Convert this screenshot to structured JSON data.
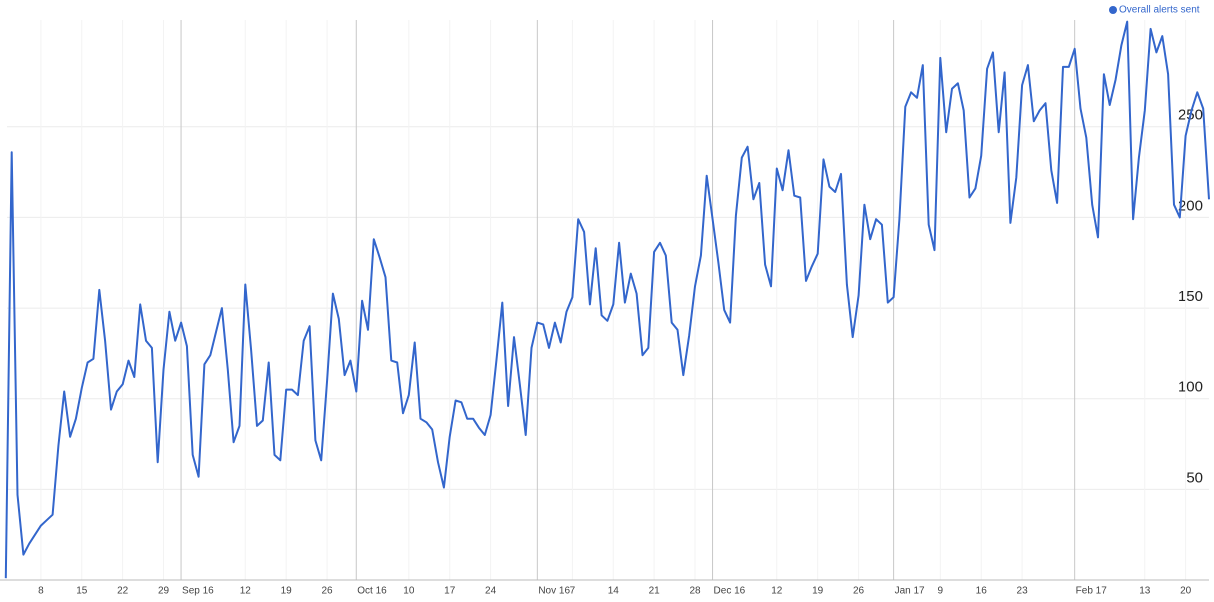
{
  "chart_data": {
    "type": "line",
    "legend": "top-right",
    "grid": true,
    "xlim": [
      "2016-08-01",
      "2017-02-24"
    ],
    "ylim": [
      0,
      310
    ],
    "yticks": [
      50,
      100,
      150,
      200,
      250
    ],
    "xticks": [
      {
        "value": "2016-08-08",
        "label": "8"
      },
      {
        "value": "2016-08-15",
        "label": "15"
      },
      {
        "value": "2016-08-22",
        "label": "22"
      },
      {
        "value": "2016-08-29",
        "label": "29"
      },
      {
        "value": "2016-09-01",
        "label": "Sep 16"
      },
      {
        "value": "2016-09-12",
        "label": "12"
      },
      {
        "value": "2016-09-19",
        "label": "19"
      },
      {
        "value": "2016-09-26",
        "label": "26"
      },
      {
        "value": "2016-10-01",
        "label": "Oct 16"
      },
      {
        "value": "2016-10-10",
        "label": "10"
      },
      {
        "value": "2016-10-17",
        "label": "17"
      },
      {
        "value": "2016-10-24",
        "label": "24"
      },
      {
        "value": "2016-11-01",
        "label": "Nov 16"
      },
      {
        "value": "2016-11-07",
        "label": "7"
      },
      {
        "value": "2016-11-14",
        "label": "14"
      },
      {
        "value": "2016-11-21",
        "label": "21"
      },
      {
        "value": "2016-11-28",
        "label": "28"
      },
      {
        "value": "2016-12-01",
        "label": "Dec 16"
      },
      {
        "value": "2016-12-12",
        "label": "12"
      },
      {
        "value": "2016-12-19",
        "label": "19"
      },
      {
        "value": "2016-12-26",
        "label": "26"
      },
      {
        "value": "2017-01-01",
        "label": "Jan 17"
      },
      {
        "value": "2017-01-09",
        "label": "9"
      },
      {
        "value": "2017-01-16",
        "label": "16"
      },
      {
        "value": "2017-01-23",
        "label": "23"
      },
      {
        "value": "2017-02-01",
        "label": "Feb 17"
      },
      {
        "value": "2017-02-13",
        "label": "13"
      },
      {
        "value": "2017-02-20",
        "label": "20"
      }
    ],
    "x": [
      "2016-08-02",
      "2016-08-03",
      "2016-08-04",
      "2016-08-05",
      "2016-08-06",
      "2016-08-07",
      "2016-08-08",
      "2016-08-09",
      "2016-08-10",
      "2016-08-11",
      "2016-08-12",
      "2016-08-13",
      "2016-08-14",
      "2016-08-15",
      "2016-08-16",
      "2016-08-17",
      "2016-08-18",
      "2016-08-19",
      "2016-08-20",
      "2016-08-21",
      "2016-08-22",
      "2016-08-23",
      "2016-08-24",
      "2016-08-25",
      "2016-08-26",
      "2016-08-27",
      "2016-08-28",
      "2016-08-29",
      "2016-08-30",
      "2016-08-31",
      "2016-09-01",
      "2016-09-02",
      "2016-09-03",
      "2016-09-04",
      "2016-09-05",
      "2016-09-06",
      "2016-09-07",
      "2016-09-08",
      "2016-09-09",
      "2016-09-10",
      "2016-09-11",
      "2016-09-12",
      "2016-09-13",
      "2016-09-14",
      "2016-09-15",
      "2016-09-16",
      "2016-09-17",
      "2016-09-18",
      "2016-09-19",
      "2016-09-20",
      "2016-09-21",
      "2016-09-22",
      "2016-09-23",
      "2016-09-24",
      "2016-09-25",
      "2016-09-26",
      "2016-09-27",
      "2016-09-28",
      "2016-09-29",
      "2016-09-30",
      "2016-10-01",
      "2016-10-02",
      "2016-10-03",
      "2016-10-04",
      "2016-10-05",
      "2016-10-06",
      "2016-10-07",
      "2016-10-08",
      "2016-10-09",
      "2016-10-10",
      "2016-10-11",
      "2016-10-12",
      "2016-10-13",
      "2016-10-14",
      "2016-10-15",
      "2016-10-16",
      "2016-10-17",
      "2016-10-18",
      "2016-10-19",
      "2016-10-20",
      "2016-10-21",
      "2016-10-22",
      "2016-10-23",
      "2016-10-24",
      "2016-10-25",
      "2016-10-26",
      "2016-10-27",
      "2016-10-28",
      "2016-10-29",
      "2016-10-30",
      "2016-10-31",
      "2016-11-01",
      "2016-11-02",
      "2016-11-03",
      "2016-11-04",
      "2016-11-05",
      "2016-11-06",
      "2016-11-07",
      "2016-11-08",
      "2016-11-09",
      "2016-11-10",
      "2016-11-11",
      "2016-11-12",
      "2016-11-13",
      "2016-11-14",
      "2016-11-15",
      "2016-11-16",
      "2016-11-17",
      "2016-11-18",
      "2016-11-19",
      "2016-11-20",
      "2016-11-21",
      "2016-11-22",
      "2016-11-23",
      "2016-11-24",
      "2016-11-25",
      "2016-11-26",
      "2016-11-27",
      "2016-11-28",
      "2016-11-29",
      "2016-11-30",
      "2016-12-01",
      "2016-12-02",
      "2016-12-03",
      "2016-12-04",
      "2016-12-05",
      "2016-12-06",
      "2016-12-07",
      "2016-12-08",
      "2016-12-09",
      "2016-12-10",
      "2016-12-11",
      "2016-12-12",
      "2016-12-13",
      "2016-12-14",
      "2016-12-15",
      "2016-12-16",
      "2016-12-17",
      "2016-12-18",
      "2016-12-19",
      "2016-12-20",
      "2016-12-21",
      "2016-12-22",
      "2016-12-23",
      "2016-12-24",
      "2016-12-25",
      "2016-12-26",
      "2016-12-27",
      "2016-12-28",
      "2016-12-29",
      "2016-12-30",
      "2016-12-31",
      "2017-01-01",
      "2017-01-02",
      "2017-01-03",
      "2017-01-04",
      "2017-01-05",
      "2017-01-06",
      "2017-01-07",
      "2017-01-08",
      "2017-01-09",
      "2017-01-10",
      "2017-01-11",
      "2017-01-12",
      "2017-01-13",
      "2017-01-14",
      "2017-01-15",
      "2017-01-16",
      "2017-01-17",
      "2017-01-18",
      "2017-01-19",
      "2017-01-20",
      "2017-01-21",
      "2017-01-22",
      "2017-01-23",
      "2017-01-24",
      "2017-01-25",
      "2017-01-26",
      "2017-01-27",
      "2017-01-28",
      "2017-01-29",
      "2017-01-30",
      "2017-01-31",
      "2017-02-01",
      "2017-02-02",
      "2017-02-03",
      "2017-02-04",
      "2017-02-05",
      "2017-02-06",
      "2017-02-07",
      "2017-02-08",
      "2017-02-09",
      "2017-02-10",
      "2017-02-11",
      "2017-02-12",
      "2017-02-13",
      "2017-02-14",
      "2017-02-15",
      "2017-02-16",
      "2017-02-17",
      "2017-02-18",
      "2017-02-19",
      "2017-02-20",
      "2017-02-21",
      "2017-02-22",
      "2017-02-23",
      "2017-02-24"
    ],
    "series": [
      {
        "name": "Overall alerts sent",
        "color": "#3366cc",
        "values": [
          1,
          236,
          47,
          14,
          20,
          25,
          30,
          33,
          36,
          74,
          104,
          79,
          89,
          106,
          120,
          122,
          160,
          132,
          94,
          104,
          108,
          121,
          112,
          152,
          132,
          128,
          65,
          116,
          148,
          132,
          142,
          129,
          69,
          57,
          119,
          124,
          137,
          150,
          116,
          76,
          85,
          163,
          127,
          85,
          88,
          120,
          69,
          66,
          105,
          105,
          102,
          132,
          140,
          77,
          66,
          110,
          158,
          144,
          113,
          121,
          104,
          154,
          138,
          188,
          178,
          167,
          121,
          120,
          92,
          102,
          131,
          89,
          87,
          83,
          65,
          51,
          79,
          99,
          98,
          89,
          89,
          84,
          80,
          91,
          121,
          153,
          96,
          134,
          108,
          80,
          128,
          142,
          141,
          128,
          142,
          131,
          148,
          156,
          199,
          192,
          152,
          183,
          146,
          143,
          152,
          186,
          153,
          169,
          158,
          124,
          128,
          181,
          186,
          179,
          142,
          138,
          113,
          135,
          162,
          179,
          223,
          199,
          175,
          149,
          142,
          201,
          233,
          239,
          210,
          219,
          174,
          162,
          227,
          215,
          237,
          212,
          211,
          165,
          173,
          180,
          232,
          217,
          214,
          224,
          163,
          134,
          157,
          207,
          188,
          199,
          196,
          153,
          156,
          199,
          261,
          269,
          266,
          284,
          196,
          182,
          288,
          247,
          271,
          274,
          259,
          211,
          216,
          234,
          282,
          291,
          247,
          280,
          197,
          222,
          273,
          284,
          253,
          259,
          263,
          226,
          208,
          283,
          283,
          293,
          260,
          244,
          207,
          189,
          279,
          262,
          276,
          295,
          308,
          199,
          233,
          259,
          304,
          291,
          300,
          279,
          207,
          200,
          245,
          259,
          269,
          260,
          210
        ]
      }
    ]
  }
}
